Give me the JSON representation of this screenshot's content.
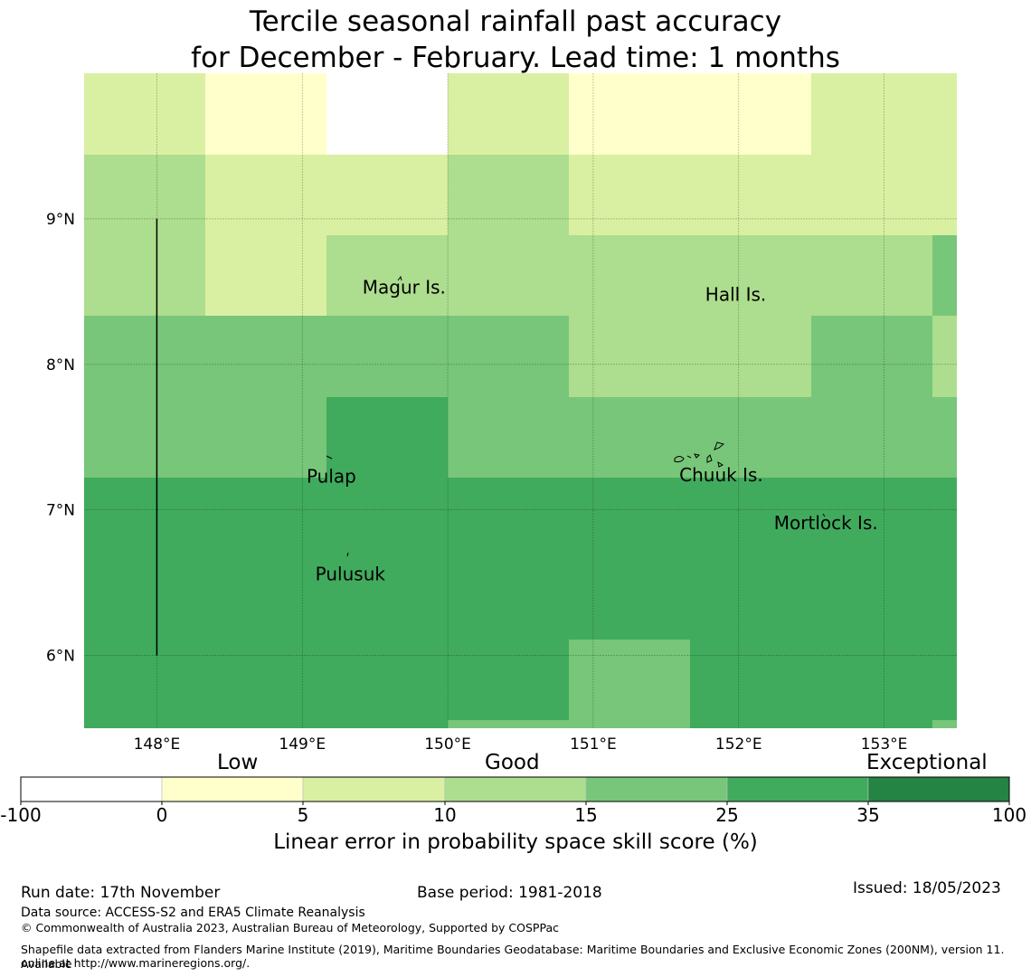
{
  "title": {
    "line1": "Tercile seasonal rainfall past accuracy",
    "line2": "for December - February. Lead time: 1 months"
  },
  "map": {
    "extent": {
      "lon_min": 147.5,
      "lon_max": 153.5,
      "lat_min": 5.5,
      "lat_max": 10.0
    },
    "lat_ticks": [
      {
        "value": 9,
        "label": "9°N"
      },
      {
        "value": 8,
        "label": "8°N"
      },
      {
        "value": 7,
        "label": "7°N"
      },
      {
        "value": 6,
        "label": "6°N"
      }
    ],
    "lon_ticks": [
      {
        "value": 148,
        "label": "148°E"
      },
      {
        "value": 149,
        "label": "149°E"
      },
      {
        "value": 150,
        "label": "150°E"
      },
      {
        "value": 151,
        "label": "151°E"
      },
      {
        "value": 152,
        "label": "152°E"
      },
      {
        "value": 153,
        "label": "153°E"
      }
    ],
    "boundary_line": {
      "lon": 148.0,
      "lat_from": 6.0,
      "lat_to": 9.0
    },
    "places": [
      {
        "name": "Magur Is.",
        "lon": 149.7,
        "lat": 8.53
      },
      {
        "name": "Hall Is.",
        "lon": 151.98,
        "lat": 8.48
      },
      {
        "name": "Pulap",
        "lon": 149.2,
        "lat": 7.23
      },
      {
        "name": "Chuuk Is.",
        "lon": 151.88,
        "lat": 7.24
      },
      {
        "name": "Mortlock Is.",
        "lon": 152.6,
        "lat": 6.91
      },
      {
        "name": "Pulusuk",
        "lon": 149.33,
        "lat": 6.56
      }
    ]
  },
  "colorbar": {
    "categories": [
      "Low",
      "Good",
      "Exceptional"
    ],
    "ticks": [
      "-100",
      "0",
      "5",
      "10",
      "15",
      "25",
      "35",
      "100"
    ],
    "colors": [
      "#ffffff",
      "#ffffcc",
      "#d9f0a3",
      "#addd8e",
      "#78c679",
      "#41ab5d",
      "#238443"
    ],
    "label": "Linear error in probability space skill score (%)"
  },
  "footer": {
    "run_date": "Run date: 17th November",
    "base_period": "Base period: 1981-2018",
    "issued": "Issued: 18/05/2023",
    "data_source": "Data source: ACCESS-S2 and ERA5 Climate Reanalysis",
    "copyright": "© Commonwealth of Australia 2023, Australian Bureau of Meteorology, Supported by COSPPac",
    "shapefile_line1": "Shapefile data extracted from Flanders Marine Institute (2019), Maritime Boundaries Geodatabase: Maritime Boundaries and Exclusive Economic Zones (200NM), version 11. Available",
    "shapefile_line2": "online at http://www.marineregions.org/."
  }
}
